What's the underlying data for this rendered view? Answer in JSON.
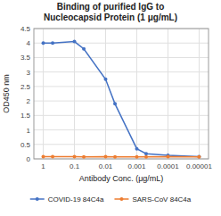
{
  "chart_data": {
    "type": "line",
    "title": "Binding of purified IgG to\nNucleocapsid Protein (1 μg/mL)",
    "x_label": "Antibody Conc. (μg/mL)",
    "y_label": "OD450 nm",
    "x": [
      1,
      0.5,
      0.1,
      0.05,
      0.01,
      0.005,
      0.001,
      0.0005,
      0.0001,
      1e-05
    ],
    "series": [
      {
        "name": "COVID-19 84C4a",
        "color": "#4472C4",
        "marker": "circle",
        "values": [
          4.0,
          4.0,
          4.05,
          3.8,
          2.75,
          1.9,
          0.35,
          0.18,
          0.12,
          0.08
        ]
      },
      {
        "name": "SARS-CoV 84C4a",
        "color": "#ED7D31",
        "marker": "circle",
        "values": [
          0.08,
          0.08,
          0.08,
          0.07,
          0.08,
          0.07,
          0.07,
          0.07,
          0.08,
          0.07
        ]
      }
    ],
    "log": "x",
    "xlim": [
      2.0,
      5e-06
    ],
    "xticks": [
      1,
      0.1,
      0.01,
      0.001,
      0.0001,
      1e-05
    ],
    "ylim": [
      0,
      4.5
    ],
    "yticks": [
      0,
      0.5,
      1,
      1.5,
      2,
      2.5,
      3,
      3.5,
      4,
      4.5
    ],
    "grid": true,
    "legend": "bottom"
  }
}
